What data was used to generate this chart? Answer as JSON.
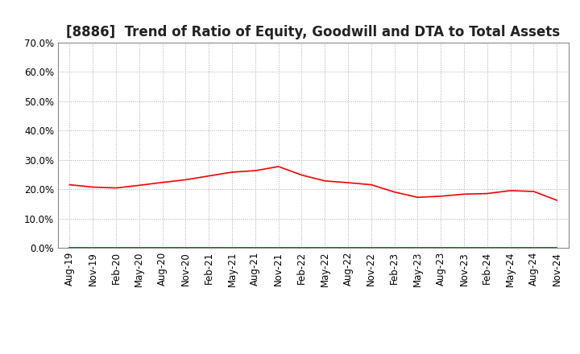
{
  "title": "[8886]  Trend of Ratio of Equity, Goodwill and DTA to Total Assets",
  "ylim": [
    0.0,
    0.7
  ],
  "yticks": [
    0.0,
    0.1,
    0.2,
    0.3,
    0.4,
    0.5,
    0.6,
    0.7
  ],
  "x_labels": [
    "Aug-19",
    "Nov-19",
    "Feb-20",
    "May-20",
    "Aug-20",
    "Nov-20",
    "Feb-21",
    "May-21",
    "Aug-21",
    "Nov-21",
    "Feb-22",
    "May-22",
    "Aug-22",
    "Nov-22",
    "Feb-23",
    "May-23",
    "Aug-23",
    "Nov-23",
    "Feb-24",
    "May-24",
    "Aug-24",
    "Nov-24"
  ],
  "equity": [
    0.215,
    0.207,
    0.204,
    0.213,
    0.223,
    0.232,
    0.245,
    0.258,
    0.263,
    0.277,
    0.248,
    0.228,
    0.222,
    0.215,
    0.19,
    0.172,
    0.176,
    0.183,
    0.185,
    0.195,
    0.192,
    0.162
  ],
  "goodwill": [
    0.0,
    0.0,
    0.0,
    0.0,
    0.0,
    0.0,
    0.0,
    0.0,
    0.0,
    0.0,
    0.0,
    0.0,
    0.0,
    0.0,
    0.0,
    0.0,
    0.0,
    0.0,
    0.0,
    0.0,
    0.0,
    0.0
  ],
  "dta": [
    0.001,
    0.001,
    0.001,
    0.001,
    0.001,
    0.001,
    0.001,
    0.001,
    0.001,
    0.001,
    0.001,
    0.001,
    0.001,
    0.001,
    0.001,
    0.001,
    0.001,
    0.001,
    0.001,
    0.001,
    0.001,
    0.001
  ],
  "equity_color": "#ff0000",
  "goodwill_color": "#0000cc",
  "dta_color": "#008000",
  "background_color": "#ffffff",
  "grid_color": "#aaaaaa",
  "title_fontsize": 12,
  "tick_fontsize": 8.5,
  "legend_fontsize": 9
}
